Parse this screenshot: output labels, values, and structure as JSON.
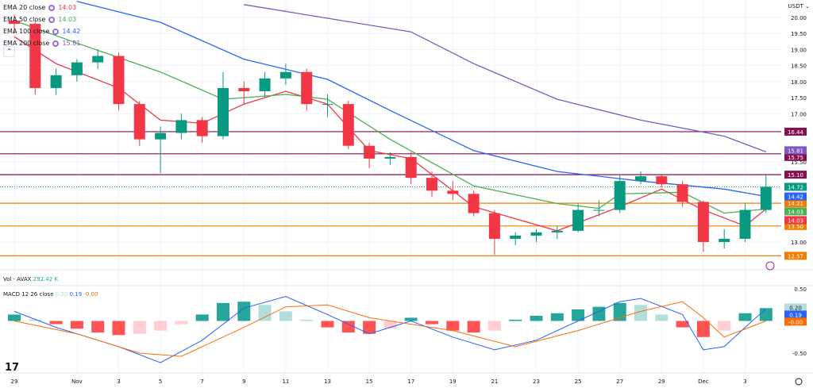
{
  "chart_data": {
    "type": "candlestick",
    "symbol": "AVAX",
    "currency": "USDT",
    "price_axis": {
      "ticks": [
        "20.00",
        "19.50",
        "19.00",
        "18.50",
        "18.00",
        "17.50",
        "17.00",
        "15.50",
        "13.00"
      ],
      "range": [
        12.4,
        20.5
      ]
    },
    "time_axis": {
      "ticks": [
        {
          "date": "10-29",
          "label": "29"
        },
        {
          "date": "11-01",
          "label": "Nov"
        },
        {
          "date": "11-03",
          "label": "3"
        },
        {
          "date": "11-05",
          "label": "5"
        },
        {
          "date": "11-07",
          "label": "7"
        },
        {
          "date": "11-09",
          "label": "9"
        },
        {
          "date": "11-11",
          "label": "11"
        },
        {
          "date": "11-13",
          "label": "13"
        },
        {
          "date": "11-15",
          "label": "15"
        },
        {
          "date": "11-17",
          "label": "17"
        },
        {
          "date": "11-19",
          "label": "19"
        },
        {
          "date": "11-21",
          "label": "21"
        },
        {
          "date": "11-23",
          "label": "23"
        },
        {
          "date": "11-25",
          "label": "25"
        },
        {
          "date": "11-27",
          "label": "27"
        },
        {
          "date": "11-29",
          "label": "29"
        },
        {
          "date": "12-01",
          "label": "Dec"
        },
        {
          "date": "12-03",
          "label": "3"
        }
      ]
    },
    "candles": [
      [
        "10-29",
        19.9,
        20.1,
        19.5,
        19.8
      ],
      [
        "10-30",
        19.8,
        19.9,
        17.6,
        17.8
      ],
      [
        "10-31",
        17.8,
        18.4,
        17.6,
        18.2
      ],
      [
        "11-01",
        18.2,
        18.7,
        18.0,
        18.6
      ],
      [
        "11-02",
        18.6,
        19.0,
        18.4,
        18.8
      ],
      [
        "11-03",
        18.8,
        18.9,
        17.1,
        17.3
      ],
      [
        "11-04",
        17.3,
        17.4,
        16.0,
        16.2
      ],
      [
        "11-05",
        16.2,
        16.6,
        15.15,
        16.4
      ],
      [
        "11-06",
        16.4,
        17.0,
        16.2,
        16.8
      ],
      [
        "11-07",
        16.8,
        16.9,
        16.1,
        16.3
      ],
      [
        "11-08",
        16.3,
        18.3,
        16.2,
        17.8
      ],
      [
        "11-09",
        17.8,
        18.0,
        17.3,
        17.7
      ],
      [
        "11-10",
        17.7,
        18.3,
        17.5,
        18.1
      ],
      [
        "11-11",
        18.1,
        18.56,
        17.9,
        18.3
      ],
      [
        "11-12",
        18.3,
        18.4,
        17.1,
        17.3
      ],
      [
        "11-13",
        17.3,
        17.6,
        16.9,
        17.3
      ],
      [
        "11-14",
        17.3,
        17.4,
        15.9,
        16.0
      ],
      [
        "11-15",
        16.0,
        16.1,
        15.3,
        15.6
      ],
      [
        "11-16",
        15.6,
        15.8,
        15.4,
        15.65
      ],
      [
        "11-17",
        15.65,
        15.8,
        14.8,
        15.0
      ],
      [
        "11-18",
        15.0,
        15.2,
        14.4,
        14.6
      ],
      [
        "11-19",
        14.6,
        14.9,
        14.3,
        14.5
      ],
      [
        "11-20",
        14.5,
        14.6,
        13.8,
        13.9
      ],
      [
        "11-21",
        13.9,
        14.0,
        12.6,
        13.1
      ],
      [
        "11-22",
        13.1,
        13.3,
        12.9,
        13.2
      ],
      [
        "11-23",
        13.2,
        13.4,
        13.0,
        13.3
      ],
      [
        "11-24",
        13.3,
        13.5,
        13.1,
        13.35
      ],
      [
        "11-25",
        13.35,
        14.2,
        13.3,
        14.0
      ],
      [
        "11-26",
        14.0,
        14.3,
        13.8,
        14.0
      ],
      [
        "11-27",
        14.0,
        15.1,
        13.9,
        14.9
      ],
      [
        "11-28",
        14.9,
        15.2,
        14.8,
        15.05
      ],
      [
        "11-29",
        15.05,
        15.1,
        14.7,
        14.8
      ],
      [
        "11-30",
        14.8,
        14.9,
        14.1,
        14.25
      ],
      [
        "12-01",
        14.25,
        14.3,
        12.7,
        13.0
      ],
      [
        "12-02",
        13.0,
        13.4,
        12.8,
        13.1
      ],
      [
        "12-03",
        13.1,
        14.2,
        13.0,
        14.0
      ],
      [
        "12-04",
        14.0,
        15.1,
        13.9,
        14.72
      ]
    ],
    "ema": [
      {
        "name": "EMA 20 close",
        "value": "14.03",
        "color": "#f23645",
        "points": [
          [
            "10-29",
            19.4
          ],
          [
            "10-31",
            18.56
          ],
          [
            "11-03",
            17.8
          ],
          [
            "11-05",
            16.8
          ],
          [
            "11-07",
            16.7
          ],
          [
            "11-09",
            17.3
          ],
          [
            "11-11",
            17.7
          ],
          [
            "11-13",
            17.3
          ],
          [
            "11-15",
            15.85
          ],
          [
            "11-17",
            15.6
          ],
          [
            "11-20",
            14.1
          ],
          [
            "11-24",
            13.35
          ],
          [
            "11-27",
            14.1
          ],
          [
            "11-29",
            14.65
          ],
          [
            "12-01",
            14.0
          ],
          [
            "12-03",
            13.5
          ],
          [
            "12-04",
            14.03
          ]
        ]
      },
      {
        "name": "EMA 50 close",
        "value": "14.03",
        "color": "#4caf50",
        "points": [
          [
            "10-29",
            19.9
          ],
          [
            "11-01",
            19.2
          ],
          [
            "11-05",
            18.3
          ],
          [
            "11-08",
            17.45
          ],
          [
            "11-11",
            17.6
          ],
          [
            "11-13",
            17.45
          ],
          [
            "11-16",
            16.2
          ],
          [
            "11-20",
            14.75
          ],
          [
            "11-24",
            14.2
          ],
          [
            "11-26",
            14.05
          ],
          [
            "11-27",
            14.5
          ],
          [
            "11-30",
            14.55
          ],
          [
            "12-02",
            13.9
          ],
          [
            "12-04",
            14.03
          ]
        ]
      },
      {
        "name": "EMA 100 close",
        "value": "14.42",
        "color": "#2962ff",
        "points": [
          [
            "11-01",
            20.5
          ],
          [
            "11-05",
            19.85
          ],
          [
            "11-09",
            18.7
          ],
          [
            "11-13",
            18.07
          ],
          [
            "11-16",
            17.1
          ],
          [
            "11-20",
            15.85
          ],
          [
            "11-24",
            15.2
          ],
          [
            "11-28",
            14.9
          ],
          [
            "12-02",
            14.65
          ],
          [
            "12-04",
            14.42
          ]
        ]
      },
      {
        "name": "EMA 200 close",
        "value": "15.81",
        "color": "#7e57c2",
        "points": [
          [
            "11-09",
            20.4
          ],
          [
            "11-17",
            19.55
          ],
          [
            "11-20",
            18.56
          ],
          [
            "11-24",
            17.45
          ],
          [
            "11-28",
            16.8
          ],
          [
            "12-02",
            16.3
          ],
          [
            "12-04",
            15.81
          ]
        ]
      }
    ],
    "levels": [
      {
        "value": 16.44,
        "label": "16.44",
        "color": "#880e4f"
      },
      {
        "value": 15.75,
        "label": "15.75",
        "color": "#880e4f"
      },
      {
        "value": 15.1,
        "label": "15.10",
        "color": "#880e4f"
      },
      {
        "value": 14.21,
        "label": "14.21",
        "color": "#f57c00"
      },
      {
        "value": 13.5,
        "label": "13.50",
        "color": "#f57c00"
      },
      {
        "value": 12.57,
        "label": "12.57",
        "color": "#f57c00"
      }
    ],
    "last_price": {
      "value": 14.72,
      "label": "14.72",
      "color": "#089981"
    },
    "axis_badges": [
      {
        "value": 15.81,
        "label": "15.81",
        "color": "#7e57c2"
      },
      {
        "value": 14.42,
        "label": "14.42",
        "color": "#2962ff"
      },
      {
        "value": 14.03,
        "label": "14.03",
        "color": "#4caf50",
        "offset": 1
      },
      {
        "value": 14.03,
        "label": "14.03",
        "color": "#f23645",
        "offset": 2
      }
    ],
    "volume": {
      "label": "Vol · AVAX",
      "value": "292.42 K"
    },
    "macd": {
      "label": "MACD 12 26 close",
      "hist_value": "0.20",
      "macd_value": "0.19",
      "signal_value": "-0.00",
      "ticks": [
        "0.50",
        "-0.50"
      ],
      "range": [
        -0.75,
        0.5
      ],
      "histogram": [
        [
          "10-29",
          0.1
        ],
        [
          "10-30",
          0.02
        ],
        [
          "10-31",
          -0.05
        ],
        [
          "11-01",
          -0.12
        ],
        [
          "11-02",
          -0.18
        ],
        [
          "11-03",
          -0.22
        ],
        [
          "11-04",
          -0.2
        ],
        [
          "11-05",
          -0.15
        ],
        [
          "11-06",
          -0.05
        ],
        [
          "11-07",
          0.1
        ],
        [
          "11-08",
          0.28
        ],
        [
          "11-09",
          0.3
        ],
        [
          "11-10",
          0.25
        ],
        [
          "11-11",
          0.15
        ],
        [
          "11-12",
          0.02
        ],
        [
          "11-13",
          -0.1
        ],
        [
          "11-14",
          -0.18
        ],
        [
          "11-15",
          -0.2
        ],
        [
          "11-16",
          -0.12
        ],
        [
          "11-17",
          0.05
        ],
        [
          "11-18",
          -0.05
        ],
        [
          "11-19",
          -0.15
        ],
        [
          "11-20",
          -0.18
        ],
        [
          "11-21",
          -0.15
        ],
        [
          "11-22",
          0.02
        ],
        [
          "11-23",
          0.08
        ],
        [
          "11-24",
          0.12
        ],
        [
          "11-25",
          0.18
        ],
        [
          "11-26",
          0.22
        ],
        [
          "11-27",
          0.28
        ],
        [
          "11-28",
          0.25
        ],
        [
          "11-29",
          0.1
        ],
        [
          "11-30",
          -0.1
        ],
        [
          "12-01",
          -0.25
        ],
        [
          "12-02",
          -0.15
        ],
        [
          "12-03",
          0.12
        ],
        [
          "12-04",
          0.2
        ]
      ],
      "macd_line": [
        [
          "10-29",
          0.15
        ],
        [
          "10-31",
          -0.1
        ],
        [
          "11-03",
          -0.4
        ],
        [
          "11-05",
          -0.65
        ],
        [
          "11-07",
          -0.3
        ],
        [
          "11-09",
          0.2
        ],
        [
          "11-11",
          0.38
        ],
        [
          "11-13",
          0.1
        ],
        [
          "11-15",
          -0.2
        ],
        [
          "11-17",
          0.0
        ],
        [
          "11-19",
          -0.25
        ],
        [
          "11-21",
          -0.45
        ],
        [
          "11-23",
          -0.3
        ],
        [
          "11-25",
          0.0
        ],
        [
          "11-27",
          0.3
        ],
        [
          "11-28",
          0.35
        ],
        [
          "11-30",
          0.1
        ],
        [
          "12-01",
          -0.45
        ],
        [
          "12-02",
          -0.4
        ],
        [
          "12-03",
          -0.1
        ],
        [
          "12-04",
          0.19
        ]
      ],
      "signal_line": [
        [
          "10-29",
          0.0
        ],
        [
          "11-01",
          -0.2
        ],
        [
          "11-04",
          -0.5
        ],
        [
          "11-06",
          -0.55
        ],
        [
          "11-09",
          -0.1
        ],
        [
          "11-11",
          0.22
        ],
        [
          "11-13",
          0.25
        ],
        [
          "11-15",
          0.05
        ],
        [
          "11-17",
          -0.05
        ],
        [
          "11-19",
          -0.15
        ],
        [
          "11-22",
          -0.4
        ],
        [
          "11-25",
          -0.15
        ],
        [
          "11-28",
          0.15
        ],
        [
          "11-30",
          0.3
        ],
        [
          "12-01",
          0.05
        ],
        [
          "12-02",
          -0.25
        ],
        [
          "12-04",
          0.0
        ]
      ]
    },
    "grid": true
  }
}
